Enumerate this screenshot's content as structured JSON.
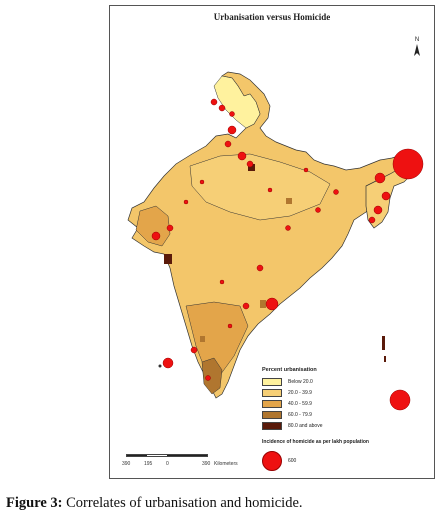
{
  "map": {
    "title": "Urbanisation versus Homicide",
    "north_arrow": "N"
  },
  "legend": {
    "title": "Percent urbanisation",
    "classes": [
      {
        "label": "Below 20.0",
        "color": "#fff29e"
      },
      {
        "label": "20.0 - 39.9",
        "color": "#f6cf76"
      },
      {
        "label": "40.0 - 59.9",
        "color": "#e3a54a"
      },
      {
        "label": "60.0 - 79.9",
        "color": "#b0762f"
      },
      {
        "label": "80.0 and above",
        "color": "#5a1a0a"
      }
    ]
  },
  "homicide_legend": {
    "title": "Incidence of homicide as per lakh population",
    "value": "600",
    "color": "#ee1111"
  },
  "scalebar": {
    "ticks": [
      "390",
      "195",
      "0"
    ],
    "last_tick": "390",
    "unit": "Kilometers"
  },
  "caption": {
    "prefix": "Figure 3:",
    "text": "Correlates of urbanisation and homicide."
  }
}
